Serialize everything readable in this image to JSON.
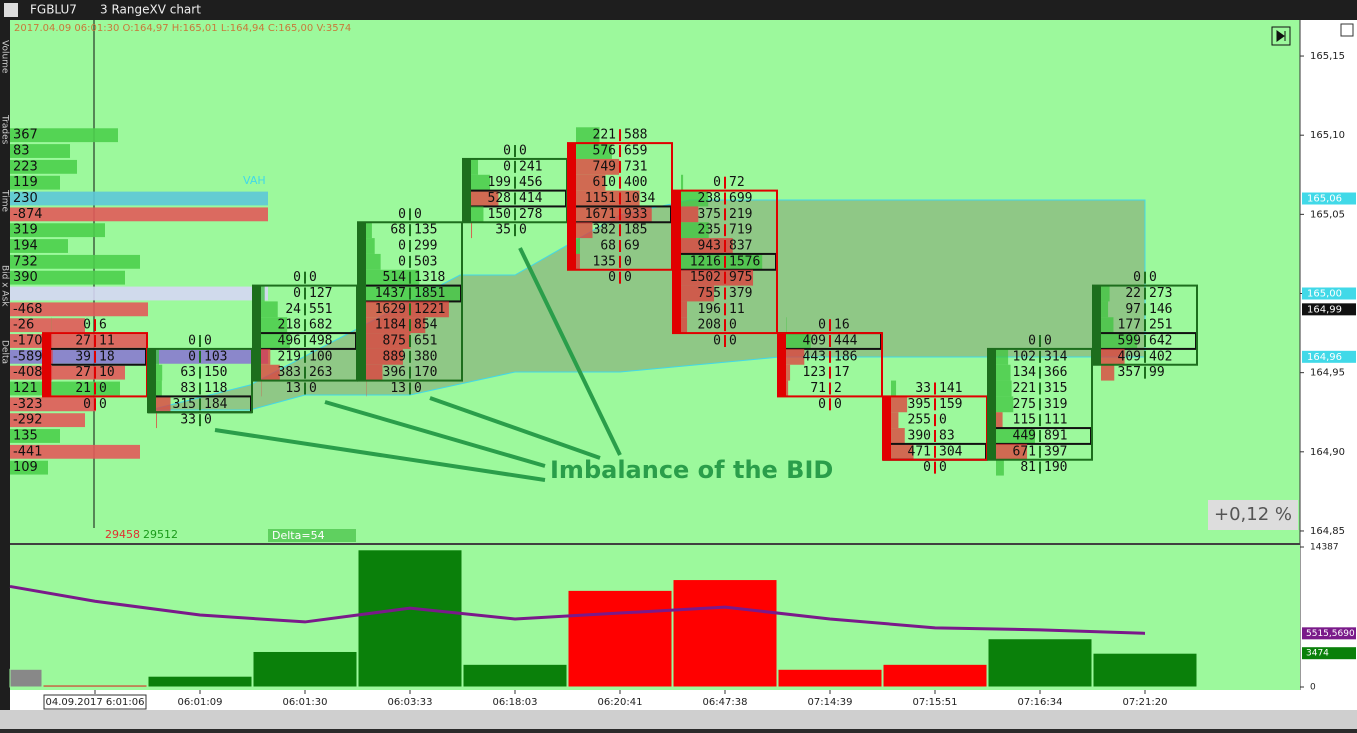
{
  "toolbar": {
    "symbol": "FGBLU7",
    "chart_name": "3 RangeXV chart"
  },
  "side_tabs": [
    "Volume",
    "Trades",
    "Time",
    "Bid x Ask",
    "Delta"
  ],
  "info_line": "2017.04.09 06:01:30  O:164,97  H:165,01  L:164,94  C:165,00  V:3574",
  "price_axis": {
    "ylim": [
      164.8424,
      165.1715
    ],
    "yticks": [
      {
        "value": 165.15,
        "label": "165,15"
      },
      {
        "value": 165.1,
        "label": "165,10"
      },
      {
        "value": 165.05,
        "label": "165,05"
      },
      {
        "value": 165.0,
        "label": "165,00"
      },
      {
        "value": 164.95,
        "label": "164,95"
      },
      {
        "value": 164.9,
        "label": "164,90"
      },
      {
        "value": 164.85,
        "label": "164,85"
      }
    ],
    "markers": [
      {
        "value": 165.06,
        "label": "165,06",
        "color": "#41d9e8"
      },
      {
        "value": 165.0,
        "label": "165,00",
        "color": "#41d9e8"
      },
      {
        "value": 164.99,
        "label": "164,99",
        "color": "#111111"
      },
      {
        "value": 164.96,
        "label": "164,96",
        "color": "#41d9e8"
      }
    ]
  },
  "profile": {
    "labels": [
      "367",
      "83",
      "223",
      "119",
      "230",
      "-874",
      "319",
      "194",
      "732",
      "390",
      null,
      "-468",
      "-26",
      "-170",
      "-589",
      "-408",
      "121",
      "-323",
      "-292",
      "135",
      "-441",
      "109"
    ],
    "volumes": [
      108,
      60,
      67,
      50,
      258,
      258,
      95,
      58,
      130,
      115,
      258,
      138,
      75,
      137,
      258,
      115,
      110,
      86,
      75,
      50,
      130,
      38
    ],
    "vah_label": "VAH",
    "total_bid": "29458",
    "total_ask": "29512",
    "delta": "Delta=54"
  },
  "clusters": [
    {
      "direction": "down",
      "rows": [
        [
          0,
          6
        ],
        [
          27,
          11
        ],
        [
          39,
          18
        ],
        [
          27,
          10
        ],
        [
          21,
          0
        ],
        [
          0,
          0
        ]
      ]
    },
    {
      "direction": "up",
      "rows": [
        [
          0,
          0
        ],
        [
          0,
          103
        ],
        [
          63,
          150
        ],
        [
          83,
          118
        ],
        [
          315,
          184
        ],
        [
          33,
          0
        ]
      ]
    },
    {
      "direction": "up",
      "rows": [
        [
          0,
          0
        ],
        [
          0,
          127
        ],
        [
          24,
          551
        ],
        [
          218,
          682
        ],
        [
          496,
          498
        ],
        [
          219,
          100
        ],
        [
          383,
          263
        ],
        [
          13,
          0
        ]
      ]
    },
    {
      "direction": "up",
      "rows": [
        [
          0,
          0
        ],
        [
          68,
          135
        ],
        [
          0,
          299
        ],
        [
          0,
          503
        ],
        [
          514,
          1318
        ],
        [
          1437,
          1851
        ],
        [
          1629,
          1221
        ],
        [
          1184,
          854
        ],
        [
          875,
          651
        ],
        [
          889,
          380
        ],
        [
          396,
          170
        ],
        [
          13,
          0
        ]
      ]
    },
    {
      "direction": "up",
      "rows": [
        [
          0,
          0
        ],
        [
          0,
          241
        ],
        [
          199,
          456
        ],
        [
          528,
          414
        ],
        [
          150,
          278
        ],
        [
          35,
          0
        ]
      ]
    },
    {
      "direction": "down",
      "rows": [
        [
          221,
          588
        ],
        [
          576,
          659
        ],
        [
          749,
          731
        ],
        [
          610,
          400
        ],
        [
          1151,
          1034
        ],
        [
          1671,
          933
        ],
        [
          382,
          185
        ],
        [
          68,
          69
        ],
        [
          135,
          0
        ],
        [
          0,
          0
        ]
      ]
    },
    {
      "direction": "down",
      "rows": [
        [
          0,
          72
        ],
        [
          238,
          699
        ],
        [
          375,
          219
        ],
        [
          235,
          719
        ],
        [
          943,
          837
        ],
        [
          1216,
          1576
        ],
        [
          1502,
          975
        ],
        [
          755,
          379
        ],
        [
          196,
          11
        ],
        [
          208,
          0
        ],
        [
          0,
          0
        ]
      ]
    },
    {
      "direction": "down",
      "rows": [
        [
          0,
          16
        ],
        [
          409,
          444
        ],
        [
          443,
          186
        ],
        [
          123,
          17
        ],
        [
          71,
          2
        ],
        [
          0,
          0
        ]
      ]
    },
    {
      "direction": "down",
      "rows": [
        [
          33,
          141
        ],
        [
          395,
          159
        ],
        [
          255,
          0
        ],
        [
          390,
          83
        ],
        [
          471,
          304
        ],
        [
          0,
          0
        ]
      ]
    },
    {
      "direction": "up",
      "rows": [
        [
          0,
          0
        ],
        [
          102,
          314
        ],
        [
          134,
          366
        ],
        [
          221,
          315
        ],
        [
          275,
          319
        ],
        [
          115,
          111
        ],
        [
          449,
          891
        ],
        [
          671,
          397
        ],
        [
          81,
          190
        ]
      ]
    },
    {
      "direction": "up",
      "rows": [
        [
          0,
          0
        ],
        [
          22,
          273
        ],
        [
          97,
          146
        ],
        [
          177,
          251
        ],
        [
          599,
          642
        ],
        [
          409,
          402
        ],
        [
          357,
          99
        ]
      ]
    }
  ],
  "annotation": "Imbalance of the BID",
  "change_label": "+0,12 %",
  "volume_pane": {
    "type": "bar",
    "ylim": [
      0,
      14387
    ],
    "yticks": [
      0,
      14387
    ],
    "values": [
      1820,
      200,
      1110,
      3650,
      14100,
      2330,
      9930,
      11040,
      1820,
      2330,
      4960,
      3474
    ],
    "colors": [
      "#888888",
      "#e01010",
      "#0a800a",
      "#0a800a",
      "#0a800a",
      "#0a800a",
      "#ff0000",
      "#ff0000",
      "#ff0000",
      "#ff0000",
      "#0a800a",
      "#0a800a"
    ],
    "average": {
      "color": "#7a1a8a",
      "values": [
        10334,
        8815,
        7396,
        6687,
        8105,
        6991,
        7599,
        8207,
        6991,
        6079,
        5876,
        5515.569
      ]
    },
    "markers": [
      {
        "value": 5515.569,
        "label": "5515,5690",
        "color": "#7a1a8a"
      },
      {
        "value": 3474,
        "label": "3474",
        "color": "#0a800a"
      }
    ]
  },
  "time_axis": {
    "labels": [
      "04.09.2017 6:01:06",
      "06:01:09",
      "06:01:30",
      "06:03:33",
      "06:18:03",
      "06:20:41",
      "06:47:38",
      "07:14:39",
      "07:15:51",
      "07:16:34",
      "07:21:20"
    ]
  }
}
